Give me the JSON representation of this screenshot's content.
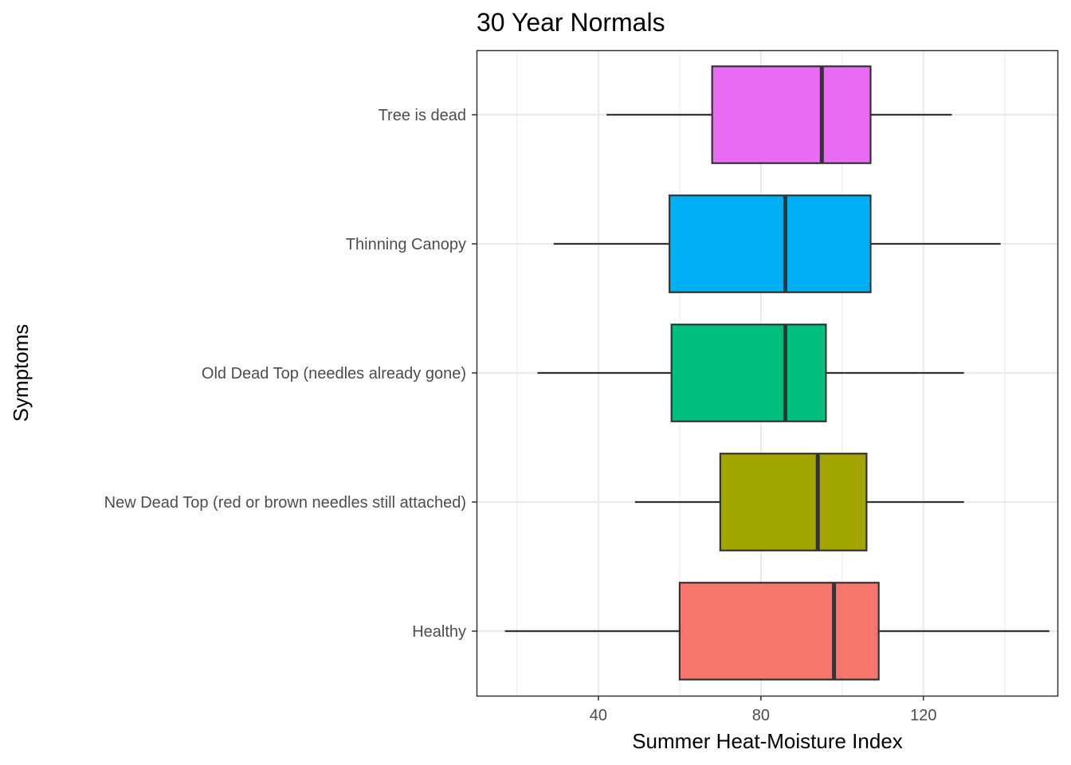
{
  "chart_data": {
    "type": "boxplot",
    "orientation": "horizontal",
    "title": "30 Year Normals",
    "xlabel": "Summer Heat-Moisture Index",
    "ylabel": "Symptoms",
    "xlim": [
      10,
      153
    ],
    "x_ticks": [
      40,
      80,
      120
    ],
    "x_minor_ticks": [
      20,
      60,
      100,
      140
    ],
    "grid": true,
    "legend": "none",
    "categories": [
      "Healthy",
      "New Dead Top (red or brown needles still attached)",
      "Old Dead Top (needles already gone)",
      "Thinning Canopy",
      "Tree is dead"
    ],
    "series": [
      {
        "category": "Healthy",
        "color": "#F8766D",
        "min": 17,
        "q1": 60,
        "median": 98,
        "q3": 109,
        "max": 151
      },
      {
        "category": "New Dead Top (red or brown needles still attached)",
        "color": "#A3A500",
        "min": 49,
        "q1": 70,
        "median": 94,
        "q3": 106,
        "max": 130
      },
      {
        "category": "Old Dead Top (needles already gone)",
        "color": "#00BF7D",
        "min": 25,
        "q1": 58,
        "median": 86,
        "q3": 96,
        "max": 130
      },
      {
        "category": "Thinning Canopy",
        "color": "#00B0F6",
        "min": 29,
        "q1": 57.5,
        "median": 86,
        "q3": 107,
        "max": 139
      },
      {
        "category": "Tree is dead",
        "color": "#E76BF3",
        "min": 42,
        "q1": 68,
        "median": 95,
        "q3": 107,
        "max": 127
      }
    ]
  }
}
